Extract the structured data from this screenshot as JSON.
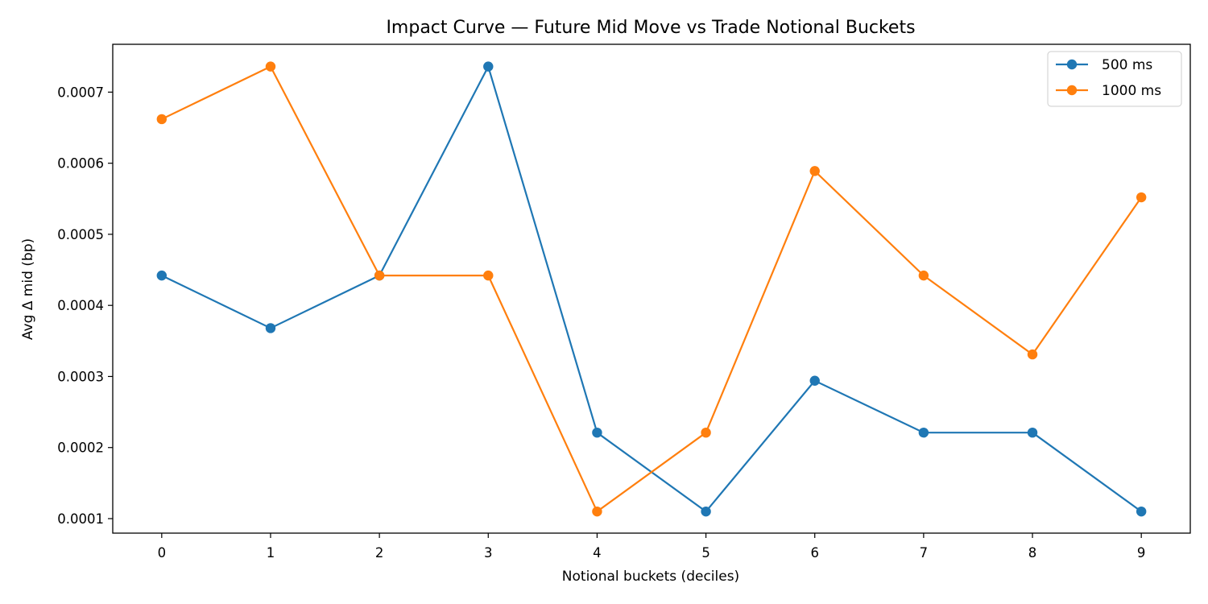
{
  "chart_data": {
    "type": "line",
    "title": "Impact Curve — Future Mid Move vs Trade Notional Buckets",
    "xlabel": "Notional buckets (deciles)",
    "ylabel": "Avg Δ mid (bp)",
    "x": [
      0,
      1,
      2,
      3,
      4,
      5,
      6,
      7,
      8,
      9
    ],
    "xticks": [
      "0",
      "1",
      "2",
      "3",
      "4",
      "5",
      "6",
      "7",
      "8",
      "9"
    ],
    "xlim": [
      -0.45,
      9.45
    ],
    "yticks": [
      0.0001,
      0.0002,
      0.0003,
      0.0004,
      0.0005,
      0.0006,
      0.0007
    ],
    "ytick_labels": [
      "0.0001",
      "0.0002",
      "0.0003",
      "0.0004",
      "0.0005",
      "0.0006",
      "0.0007"
    ],
    "ylim": [
      7.96e-05,
      0.0007673
    ],
    "grid": false,
    "legend_position": "top-right",
    "series": [
      {
        "name": "500 ms",
        "color": "#1f77b4",
        "values": [
          0.000442,
          0.000368,
          0.000442,
          0.000736,
          0.000221,
          0.00011,
          0.000294,
          0.000221,
          0.000221,
          0.00011
        ]
      },
      {
        "name": "1000 ms",
        "color": "#ff7f0e",
        "values": [
          0.000662,
          0.000736,
          0.000442,
          0.000442,
          0.00011,
          0.000221,
          0.000589,
          0.000442,
          0.000331,
          0.000552
        ]
      }
    ]
  }
}
